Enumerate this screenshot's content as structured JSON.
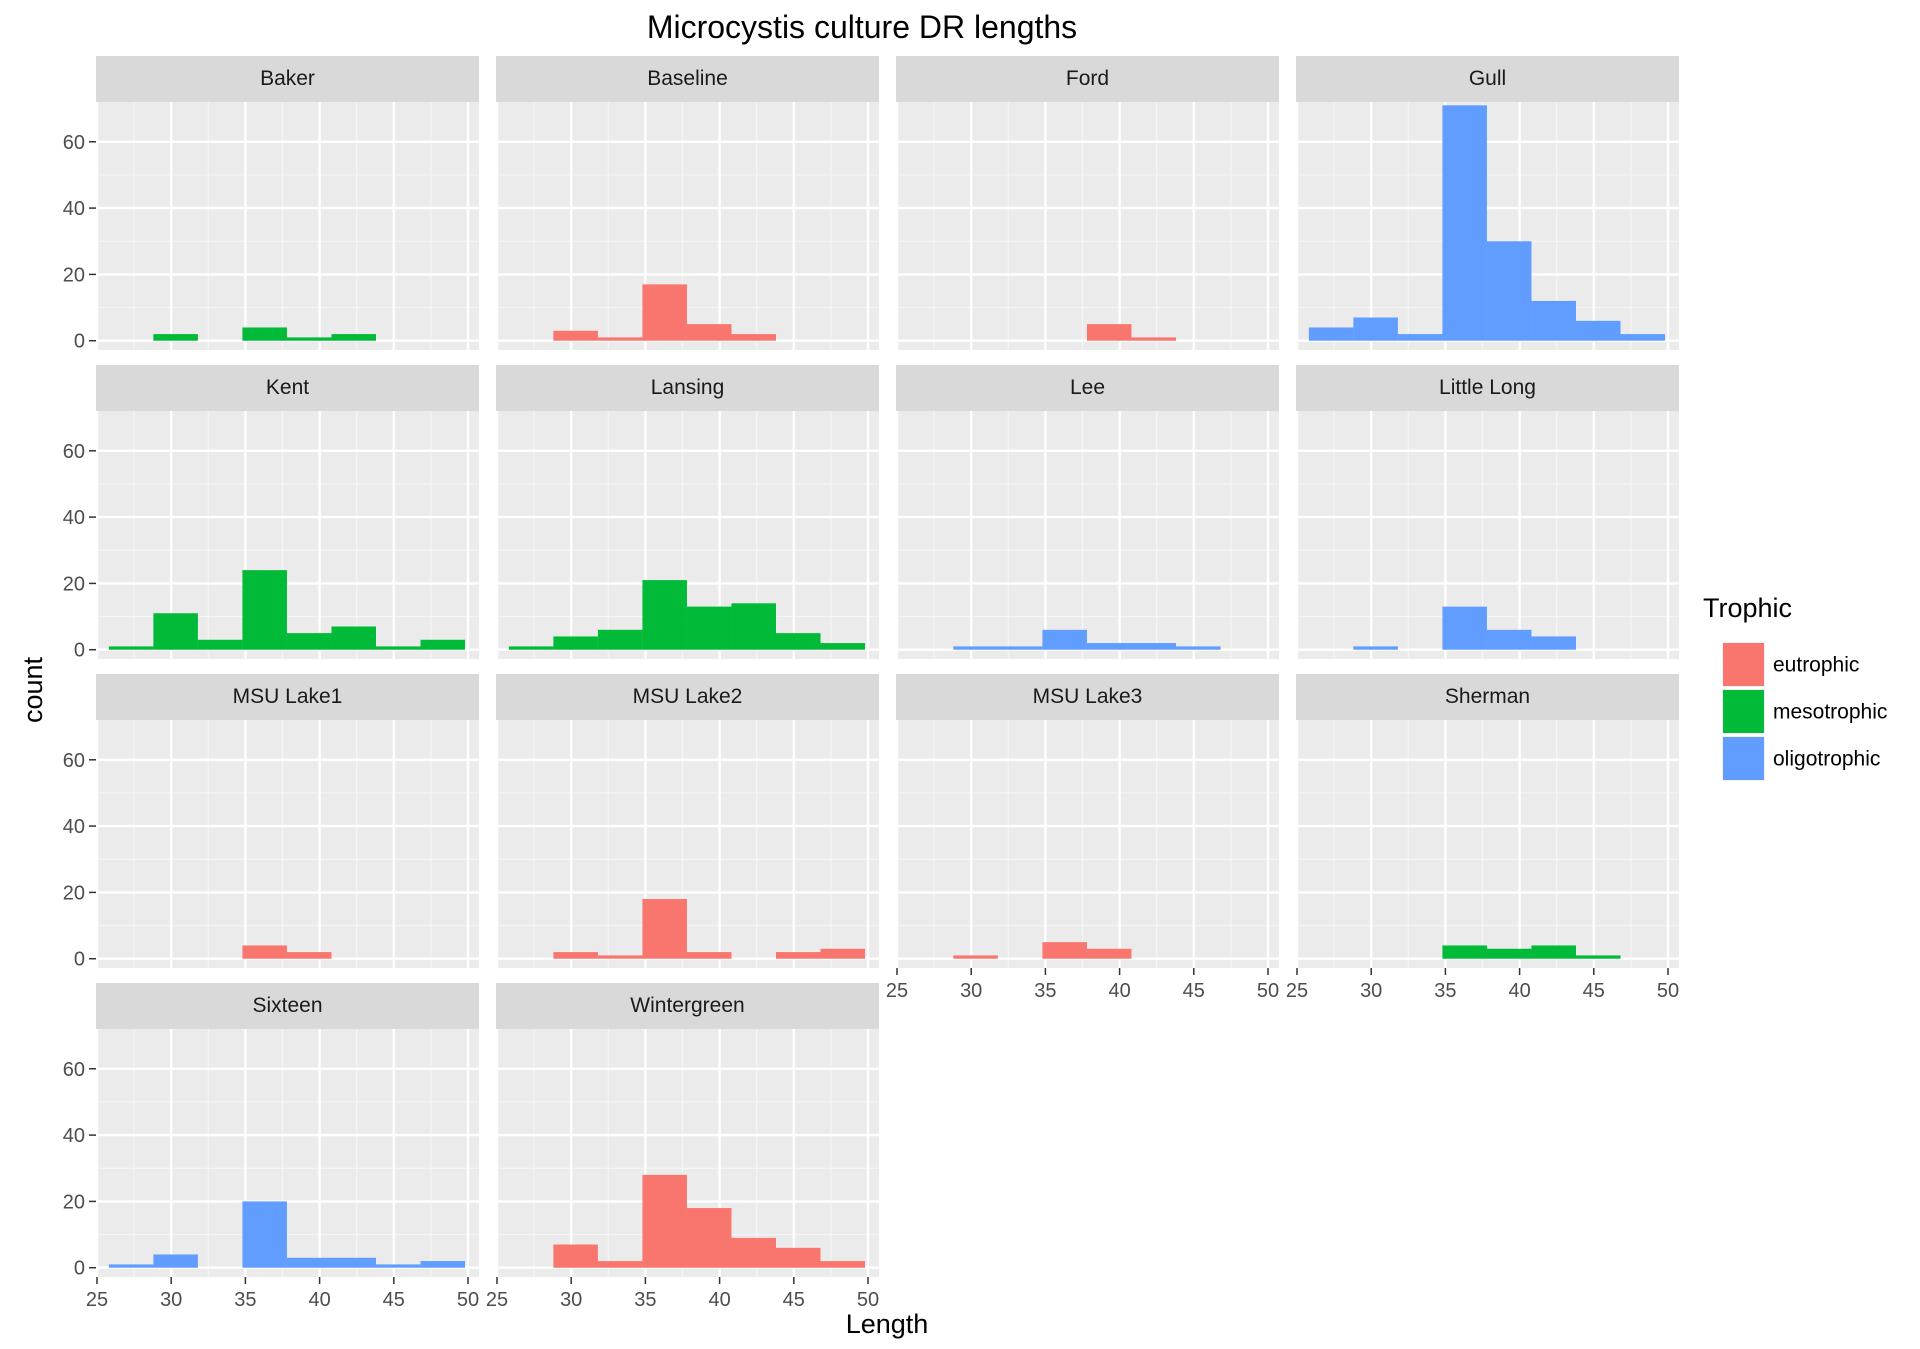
{
  "chart_data": {
    "type": "bar",
    "title": "Microcystis culture DR lengths",
    "xlabel": "Length",
    "ylabel": "count",
    "xlim": [
      25,
      50
    ],
    "ylim": [
      0,
      72
    ],
    "x_ticks": [
      25,
      30,
      35,
      40,
      45,
      50
    ],
    "y_ticks": [
      0,
      20,
      40,
      60
    ],
    "grid": true,
    "bin_width": 3,
    "bin_starts": [
      25.8,
      28.8,
      31.8,
      34.8,
      37.8,
      40.8,
      43.8,
      46.8
    ],
    "legend": {
      "title": "Trophic",
      "position": "right",
      "entries": [
        {
          "name": "eutrophic",
          "color": "#F8766D"
        },
        {
          "name": "mesotrophic",
          "color": "#00BA38"
        },
        {
          "name": "oligotrophic",
          "color": "#619CFF"
        }
      ]
    },
    "panels": [
      {
        "name": "Baker",
        "trophic": "mesotrophic",
        "counts": [
          0,
          2,
          0,
          4,
          1,
          2,
          0,
          0
        ]
      },
      {
        "name": "Baseline",
        "trophic": "eutrophic",
        "counts": [
          0,
          3,
          1,
          17,
          5,
          2,
          0,
          0
        ]
      },
      {
        "name": "Ford",
        "trophic": "eutrophic",
        "counts": [
          0,
          0,
          0,
          0,
          5,
          1,
          0,
          0
        ]
      },
      {
        "name": "Gull",
        "trophic": "oligotrophic",
        "counts": [
          4,
          7,
          2,
          71,
          30,
          12,
          6,
          2
        ]
      },
      {
        "name": "Kent",
        "trophic": "mesotrophic",
        "counts": [
          1,
          11,
          3,
          24,
          5,
          7,
          1,
          3
        ]
      },
      {
        "name": "Lansing",
        "trophic": "mesotrophic",
        "counts": [
          1,
          4,
          6,
          21,
          13,
          14,
          5,
          2
        ]
      },
      {
        "name": "Lee",
        "trophic": "oligotrophic",
        "counts": [
          0,
          1,
          1,
          6,
          2,
          2,
          1,
          0
        ]
      },
      {
        "name": "Little Long",
        "trophic": "oligotrophic",
        "counts": [
          0,
          1,
          0,
          13,
          6,
          4,
          0,
          0
        ]
      },
      {
        "name": "MSU Lake1",
        "trophic": "eutrophic",
        "counts": [
          0,
          0,
          0,
          4,
          2,
          0,
          0,
          0
        ]
      },
      {
        "name": "MSU Lake2",
        "trophic": "eutrophic",
        "counts": [
          0,
          2,
          1,
          18,
          2,
          0,
          2,
          3
        ]
      },
      {
        "name": "MSU Lake3",
        "trophic": "eutrophic",
        "counts": [
          0,
          1,
          0,
          5,
          3,
          0,
          0,
          0
        ]
      },
      {
        "name": "Sherman",
        "trophic": "mesotrophic",
        "counts": [
          0,
          0,
          0,
          4,
          3,
          4,
          1,
          0
        ]
      },
      {
        "name": "Sixteen",
        "trophic": "oligotrophic",
        "counts": [
          1,
          4,
          0,
          20,
          3,
          3,
          1,
          2
        ]
      },
      {
        "name": "Wintergreen",
        "trophic": "eutrophic",
        "counts": [
          0,
          7,
          2,
          28,
          18,
          9,
          6,
          2
        ]
      }
    ]
  }
}
